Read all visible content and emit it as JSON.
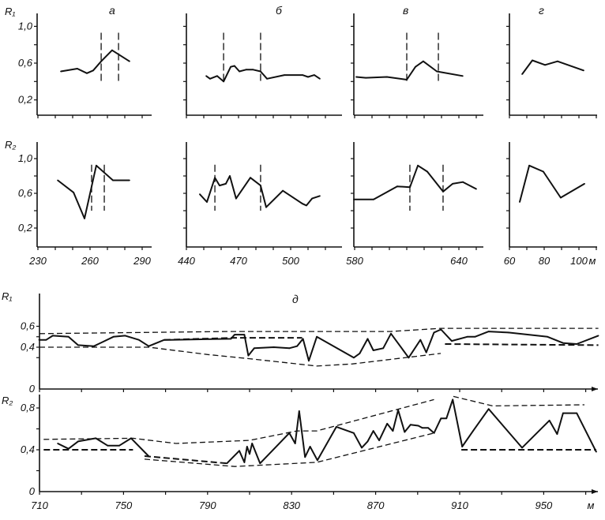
{
  "chart_data": [
    {
      "type": "line",
      "panel": "а",
      "unit": "",
      "xticks": [
        "230",
        "260",
        "290"
      ],
      "xtick_values": [
        230,
        260,
        290
      ],
      "xlim": [
        230,
        295
      ],
      "r1": {
        "ylabel": "R₁",
        "yticks": [
          "1,0",
          "0,6",
          "0,2"
        ],
        "ytick_values": [
          1.0,
          0.6,
          0.2
        ],
        "points": [
          [
            243.2,
            0.51
          ],
          [
            252.7,
            0.54
          ],
          [
            258.2,
            0.49
          ],
          [
            261.8,
            0.52
          ],
          [
            266.4,
            0.62
          ],
          [
            272.7,
            0.74
          ],
          [
            282.7,
            0.62
          ]
        ],
        "markers": [
          266.4,
          276.4
        ]
      },
      "r2": {
        "ylabel": "R₂",
        "yticks": [
          "1,0",
          "0,6",
          "0,2"
        ],
        "ytick_values": [
          1.0,
          0.6,
          0.2
        ],
        "points": [
          [
            241.4,
            0.75
          ],
          [
            250.5,
            0.61
          ],
          [
            256.8,
            0.31
          ],
          [
            263.6,
            0.92
          ],
          [
            273.2,
            0.75
          ],
          [
            282.7,
            0.75
          ]
        ],
        "markers": [
          260.9,
          268.2
        ]
      }
    },
    {
      "type": "line",
      "panel": "б",
      "unit": "",
      "xticks": [
        "440",
        "470",
        "500"
      ],
      "xtick_values": [
        440,
        470,
        500
      ],
      "xlim": [
        440,
        530
      ],
      "r1": {
        "points": [
          [
            451.4,
            0.46
          ],
          [
            453.6,
            0.43
          ],
          [
            457.7,
            0.46
          ],
          [
            461.4,
            0.4
          ],
          [
            465.5,
            0.56
          ],
          [
            467.7,
            0.57
          ],
          [
            470.5,
            0.51
          ],
          [
            474.5,
            0.53
          ],
          [
            478.2,
            0.53
          ],
          [
            482.7,
            0.51
          ],
          [
            486.4,
            0.43
          ],
          [
            496.4,
            0.47
          ],
          [
            506.8,
            0.47
          ],
          [
            510,
            0.45
          ],
          [
            513.6,
            0.47
          ],
          [
            516.8,
            0.43
          ]
        ],
        "markers": [
          461.4,
          482.7
        ]
      },
      "r2": {
        "points": [
          [
            447.7,
            0.59
          ],
          [
            451.8,
            0.5
          ],
          [
            456.4,
            0.78
          ],
          [
            459.1,
            0.69
          ],
          [
            462.7,
            0.71
          ],
          [
            465,
            0.8
          ],
          [
            468.6,
            0.54
          ],
          [
            476.8,
            0.78
          ],
          [
            482.7,
            0.69
          ],
          [
            485.9,
            0.44
          ],
          [
            495.5,
            0.63
          ],
          [
            506.8,
            0.48
          ],
          [
            509.1,
            0.46
          ],
          [
            512.3,
            0.54
          ],
          [
            516.8,
            0.57
          ]
        ],
        "markers": [
          456.4,
          482.7
        ]
      }
    },
    {
      "type": "line",
      "panel": "в",
      "unit": "",
      "xticks": [
        "580",
        "640"
      ],
      "xtick_values": [
        580,
        640
      ],
      "xlim": [
        580,
        655
      ],
      "r1": {
        "points": [
          [
            580.9,
            0.45
          ],
          [
            586.4,
            0.44
          ],
          [
            598.6,
            0.45
          ],
          [
            610,
            0.42
          ],
          [
            615,
            0.56
          ],
          [
            619.5,
            0.62
          ],
          [
            627.3,
            0.51
          ],
          [
            642.2,
            0.46
          ]
        ],
        "markers": [
          610,
          628.2
        ]
      },
      "r2": {
        "points": [
          [
            579.5,
            0.53
          ],
          [
            590.9,
            0.53
          ],
          [
            604.5,
            0.68
          ],
          [
            611.8,
            0.67
          ],
          [
            616.4,
            0.92
          ],
          [
            621.8,
            0.85
          ],
          [
            630.9,
            0.62
          ],
          [
            636.4,
            0.71
          ],
          [
            642.3,
            0.73
          ],
          [
            650,
            0.65
          ]
        ],
        "markers": [
          611.8,
          630.9
        ]
      }
    },
    {
      "type": "line",
      "panel": "г",
      "unit": "м",
      "xticks": [
        "60",
        "80",
        "100"
      ],
      "xtick_values": [
        60,
        80,
        100
      ],
      "xlim": [
        60,
        110
      ],
      "r1": {
        "points": [
          [
            67.3,
            0.48
          ],
          [
            73.2,
            0.63
          ],
          [
            80.5,
            0.58
          ],
          [
            87.7,
            0.62
          ],
          [
            102.7,
            0.52
          ]
        ],
        "markers": []
      },
      "r2": {
        "points": [
          [
            65.9,
            0.5
          ],
          [
            71.4,
            0.92
          ],
          [
            79.5,
            0.85
          ],
          [
            89.5,
            0.55
          ],
          [
            103.2,
            0.71
          ]
        ],
        "markers": []
      }
    },
    {
      "type": "line",
      "panel": "д",
      "unit": "м",
      "xticks": [
        "710",
        "750",
        "790",
        "830",
        "870",
        "910",
        "950"
      ],
      "xtick_values": [
        710,
        750,
        790,
        830,
        870,
        910,
        950
      ],
      "xlim": [
        710,
        977
      ],
      "r1": {
        "ylabel": "R₁",
        "yticks": [
          "0,6",
          "0,4",
          "0"
        ],
        "ytick_values": [
          0.6,
          0.4,
          0
        ],
        "points": [
          [
            709.8,
            0.47
          ],
          [
            713.2,
            0.47
          ],
          [
            716.3,
            0.51
          ],
          [
            723.8,
            0.5
          ],
          [
            728.4,
            0.42
          ],
          [
            735.9,
            0.41
          ],
          [
            745.2,
            0.5
          ],
          [
            750.8,
            0.51
          ],
          [
            757.3,
            0.47
          ],
          [
            762,
            0.41
          ],
          [
            769.4,
            0.47
          ],
          [
            772.2,
            0.47
          ],
          [
            801.1,
            0.48
          ],
          [
            802.9,
            0.52
          ],
          [
            807.5,
            0.52
          ],
          [
            809.4,
            0.32
          ],
          [
            812.2,
            0.39
          ],
          [
            821.5,
            0.4
          ],
          [
            828.9,
            0.39
          ],
          [
            832.6,
            0.41
          ],
          [
            835.4,
            0.48
          ],
          [
            838.2,
            0.27
          ],
          [
            842,
            0.5
          ],
          [
            859.6,
            0.3
          ],
          [
            862.4,
            0.34
          ],
          [
            866.2,
            0.48
          ],
          [
            868.9,
            0.37
          ],
          [
            873.6,
            0.39
          ],
          [
            877.3,
            0.53
          ],
          [
            885.7,
            0.3
          ],
          [
            891.3,
            0.47
          ],
          [
            894.1,
            0.35
          ],
          [
            897.8,
            0.54
          ],
          [
            901.1,
            0.57
          ],
          [
            906.2,
            0.46
          ],
          [
            913.6,
            0.5
          ],
          [
            917.3,
            0.5
          ],
          [
            923.8,
            0.55
          ],
          [
            933.2,
            0.54
          ],
          [
            951.8,
            0.5
          ],
          [
            959.2,
            0.44
          ],
          [
            965.7,
            0.43
          ],
          [
            976,
            0.51
          ]
        ],
        "envelopes": [
          {
            "style": "thin",
            "points": [
              [
                710,
                0.53
              ],
              [
                800,
                0.55
              ],
              [
                877,
                0.55
              ],
              [
                901,
                0.58
              ],
              [
                976,
                0.58
              ]
            ]
          },
          {
            "style": "thick",
            "points": [
              [
                769.4,
                0.47
              ],
              [
                803,
                0.49
              ],
              [
                835,
                0.49
              ]
            ]
          },
          {
            "style": "thick",
            "points": [
              [
                903,
                0.43
              ],
              [
                976,
                0.42
              ]
            ]
          },
          {
            "style": "thin",
            "points": [
              [
                710,
                0.4
              ],
              [
                762,
                0.4
              ],
              [
                790,
                0.33
              ],
              [
                810,
                0.29
              ],
              [
                842,
                0.22
              ],
              [
                859,
                0.24
              ],
              [
                901,
                0.34
              ]
            ]
          }
        ]
      },
      "r2": {
        "ylabel": "R₂",
        "yticks": [
          "0,8",
          "0,4",
          "0"
        ],
        "ytick_values": [
          0.8,
          0.4,
          0
        ],
        "points": [
          [
            718.7,
            0.46
          ],
          [
            723.8,
            0.41
          ],
          [
            728.4,
            0.48
          ],
          [
            736.8,
            0.51
          ],
          [
            742.4,
            0.44
          ],
          [
            748,
            0.44
          ],
          [
            753.6,
            0.51
          ],
          [
            761.9,
            0.34
          ],
          [
            null,
            null
          ],
          [
            799.2,
            0.27
          ],
          [
            805.1,
            0.39
          ],
          [
            807.5,
            0.28
          ],
          [
            808.8,
            0.43
          ],
          [
            810,
            0.36
          ],
          [
            811.2,
            0.46
          ],
          [
            815,
            0.27
          ],
          [
            828.9,
            0.56
          ],
          [
            831.7,
            0.46
          ],
          [
            833.6,
            0.77
          ],
          [
            836.4,
            0.33
          ],
          [
            838.8,
            0.43
          ],
          [
            842.3,
            0.3
          ],
          [
            851.3,
            0.62
          ],
          [
            859.6,
            0.56
          ],
          [
            863.4,
            0.42
          ],
          [
            866.2,
            0.48
          ],
          [
            868.9,
            0.58
          ],
          [
            871.7,
            0.49
          ],
          [
            875.5,
            0.65
          ],
          [
            878.2,
            0.58
          ],
          [
            880.7,
            0.78
          ],
          [
            883.8,
            0.57
          ],
          [
            886.6,
            0.64
          ],
          [
            890.3,
            0.63
          ],
          [
            892.2,
            0.61
          ],
          [
            895,
            0.61
          ],
          [
            897.8,
            0.56
          ],
          [
            901.1,
            0.7
          ],
          [
            903.7,
            0.7
          ],
          [
            906.7,
            0.88
          ],
          [
            911.2,
            0.43
          ],
          [
            916.4,
            0.58
          ],
          [
            923.8,
            0.79
          ],
          [
            939.7,
            0.42
          ],
          [
            952.7,
            0.68
          ],
          [
            956.4,
            0.55
          ],
          [
            959.2,
            0.75
          ],
          [
            965.7,
            0.75
          ],
          [
            975,
            0.38
          ]
        ],
        "envelopes": [
          {
            "style": "thin",
            "points": [
              [
                712,
                0.5
              ],
              [
                754.5,
                0.51
              ],
              [
                775,
                0.46
              ],
              [
                810,
                0.49
              ],
              [
                832.6,
                0.58
              ],
              [
                842,
                0.58
              ],
              [
                897.8,
                0.88
              ]
            ]
          },
          {
            "style": "thin",
            "points": [
              [
                907,
                0.91
              ],
              [
                925.7,
                0.82
              ],
              [
                969.4,
                0.83
              ]
            ]
          },
          {
            "style": "thick",
            "points": [
              [
                712,
                0.4
              ],
              [
                754.5,
                0.4
              ]
            ]
          },
          {
            "style": "thick",
            "points": [
              [
                760,
                0.34
              ],
              [
                799.2,
                0.27
              ]
            ]
          },
          {
            "style": "thin",
            "points": [
              [
                760,
                0.31
              ],
              [
                803,
                0.24
              ],
              [
                842,
                0.28
              ],
              [
                897.8,
                0.56
              ]
            ]
          },
          {
            "style": "thick",
            "points": [
              [
                910.8,
                0.4
              ],
              [
                975,
                0.4
              ]
            ]
          }
        ]
      }
    }
  ]
}
